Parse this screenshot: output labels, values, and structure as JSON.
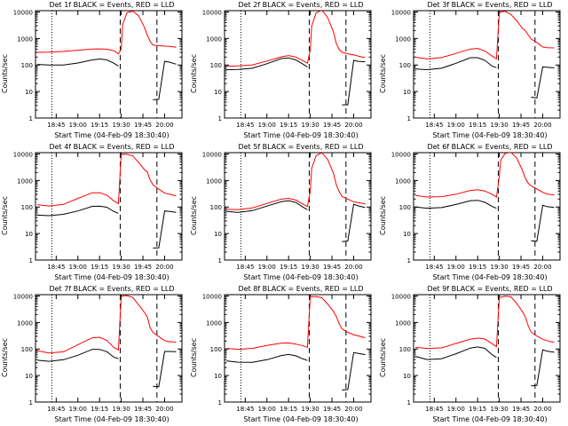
{
  "colors": {
    "events": "#000000",
    "lld": "#ff0000",
    "background": "#ffffff"
  },
  "common": {
    "ylabel": "Counts/sec",
    "xlabel": "Start Time (04-Feb-09 18:30:40)"
  },
  "chart_data": [
    {
      "type": "line",
      "title": "Det 1f BLACK = Events, RED = LLD",
      "xlabel": "Start Time (04-Feb-09 18:30:40)",
      "ylabel": "Counts/sec",
      "x_ticks": [
        "18:45",
        "19:00",
        "19:15",
        "19:30",
        "19:45",
        "20:00"
      ],
      "y_ticks": [
        "1",
        "10",
        "100",
        "1000",
        "10000"
      ],
      "y_scale": "log",
      "ylim": [
        1,
        10000
      ],
      "x": [
        "18:32",
        "18:40",
        "18:50",
        "19:00",
        "19:10",
        "19:15",
        "19:20",
        "19:25",
        "19:28",
        "19:30",
        "19:31",
        "19:34",
        "19:38",
        "19:42",
        "19:46",
        "19:48",
        "19:50",
        "19:52",
        "19:56",
        "20:00",
        "20:03",
        "20:08"
      ],
      "series": [
        {
          "color": "red",
          "values": [
            300,
            290,
            310,
            360,
            420,
            430,
            400,
            330,
            250,
            400,
            3500,
            10000,
            11000,
            7000,
            2500,
            1300,
            800,
            600,
            550,
            500,
            480,
            450
          ]
        },
        {
          "color": "black",
          "values": [
            100,
            95,
            100,
            125,
            165,
            170,
            150,
            110,
            90,
            null,
            null,
            null,
            null,
            null,
            null,
            null,
            null,
            5,
            5,
            130,
            125,
            110
          ]
        }
      ]
    },
    {
      "type": "line",
      "title": "Det 2f BLACK = Events, RED = LLD",
      "xlabel": "Start Time (04-Feb-09 18:30:40)",
      "ylabel": "Counts/sec",
      "x_ticks": [
        "18:45",
        "19:00",
        "19:15",
        "19:30",
        "19:45",
        "20:00"
      ],
      "y_ticks": [
        "1",
        "10",
        "100",
        "1000",
        "10000"
      ],
      "y_scale": "log",
      "ylim": [
        1,
        10000
      ],
      "x": [
        "18:32",
        "18:40",
        "18:50",
        "19:00",
        "19:10",
        "19:15",
        "19:20",
        "19:25",
        "19:28",
        "19:30",
        "19:31",
        "19:34",
        "19:38",
        "19:42",
        "19:46",
        "19:48",
        "19:50",
        "19:52",
        "19:56",
        "20:00",
        "20:03",
        "20:08"
      ],
      "series": [
        {
          "color": "red",
          "values": [
            85,
            90,
            105,
            150,
            210,
            220,
            190,
            140,
            120,
            400,
            3000,
            9000,
            11000,
            6000,
            1800,
            700,
            400,
            300,
            250,
            230,
            220,
            200
          ]
        },
        {
          "color": "black",
          "values": [
            65,
            70,
            80,
            115,
            170,
            175,
            150,
            110,
            90,
            null,
            null,
            null,
            null,
            null,
            null,
            null,
            null,
            3,
            3,
            150,
            145,
            140
          ]
        }
      ]
    },
    {
      "type": "line",
      "title": "Det 3f BLACK = Events, RED = LLD",
      "xlabel": "Start Time (04-Feb-09 18:30:40)",
      "ylabel": "Counts/sec",
      "x_ticks": [
        "18:45",
        "19:00",
        "19:15",
        "19:30",
        "19:45",
        "20:00"
      ],
      "y_ticks": [
        "1",
        "10",
        "100",
        "1000",
        "10000"
      ],
      "y_scale": "log",
      "ylim": [
        1,
        10000
      ],
      "x": [
        "18:32",
        "18:40",
        "18:50",
        "19:00",
        "19:10",
        "19:15",
        "19:20",
        "19:25",
        "19:28",
        "19:30",
        "19:31",
        "19:34",
        "19:38",
        "19:42",
        "19:46",
        "19:48",
        "19:50",
        "19:52",
        "19:56",
        "20:00",
        "20:03",
        "20:08"
      ],
      "series": [
        {
          "color": "red",
          "values": [
            200,
            180,
            200,
            270,
            380,
            400,
            340,
            230,
            180,
            9000,
            9500,
            10000,
            8000,
            5000,
            2500,
            2000,
            1300,
            900,
            700,
            500,
            480,
            450
          ]
        },
        {
          "color": "black",
          "values": [
            75,
            70,
            75,
            110,
            180,
            190,
            160,
            95,
            80,
            null,
            null,
            null,
            null,
            null,
            null,
            null,
            null,
            6,
            6,
            90,
            85,
            75
          ]
        }
      ]
    },
    {
      "type": "line",
      "title": "Det 4f BLACK = Events, RED = LLD",
      "xlabel": "Start Time (04-Feb-09 18:30:40)",
      "ylabel": "Counts/sec",
      "x_ticks": [
        "18:45",
        "19:00",
        "19:15",
        "19:30",
        "19:45",
        "20:00"
      ],
      "y_ticks": [
        "1",
        "10",
        "100",
        "1000",
        "10000"
      ],
      "y_scale": "log",
      "ylim": [
        1,
        10000
      ],
      "x": [
        "18:32",
        "18:40",
        "18:50",
        "19:00",
        "19:10",
        "19:15",
        "19:20",
        "19:25",
        "19:28",
        "19:30",
        "19:31",
        "19:34",
        "19:38",
        "19:42",
        "19:46",
        "19:48",
        "19:50",
        "19:52",
        "19:56",
        "20:00",
        "20:03",
        "20:08"
      ],
      "series": [
        {
          "color": "red",
          "values": [
            130,
            110,
            120,
            200,
            340,
            360,
            300,
            170,
            130,
            9000,
            9500,
            10000,
            9000,
            5000,
            2500,
            2000,
            1000,
            700,
            500,
            350,
            300,
            250
          ]
        },
        {
          "color": "black",
          "values": [
            50,
            45,
            50,
            70,
            110,
            115,
            100,
            65,
            55,
            null,
            null,
            null,
            null,
            null,
            null,
            null,
            null,
            3,
            3,
            70,
            65,
            60
          ]
        }
      ]
    },
    {
      "type": "line",
      "title": "Det 5f BLACK = Events, RED = LLD",
      "xlabel": "Start Time (04-Feb-09 18:30:40)",
      "ylabel": "Counts/sec",
      "x_ticks": [
        "18:45",
        "19:00",
        "19:15",
        "19:30",
        "19:45",
        "20:00"
      ],
      "y_ticks": [
        "1",
        "10",
        "100",
        "1000",
        "10000"
      ],
      "y_scale": "log",
      "ylim": [
        1,
        10000
      ],
      "x": [
        "18:32",
        "18:40",
        "18:50",
        "19:00",
        "19:10",
        "19:15",
        "19:20",
        "19:25",
        "19:28",
        "19:30",
        "19:31",
        "19:34",
        "19:38",
        "19:42",
        "19:46",
        "19:48",
        "19:50",
        "19:52",
        "19:56",
        "20:00",
        "20:03",
        "20:08"
      ],
      "series": [
        {
          "color": "red",
          "values": [
            80,
            75,
            90,
            140,
            210,
            220,
            180,
            120,
            100,
            400,
            3000,
            9000,
            11000,
            6000,
            1800,
            700,
            400,
            260,
            200,
            150,
            140,
            130
          ]
        },
        {
          "color": "black",
          "values": [
            65,
            60,
            75,
            115,
            165,
            170,
            140,
            95,
            80,
            null,
            null,
            null,
            null,
            null,
            null,
            null,
            null,
            5,
            5,
            120,
            110,
            100
          ]
        }
      ]
    },
    {
      "type": "line",
      "title": "Det 6f BLACK = Events, RED = LLD",
      "xlabel": "Start Time (04-Feb-09 18:30:40)",
      "ylabel": "Counts/sec",
      "x_ticks": [
        "18:45",
        "19:00",
        "19:15",
        "19:30",
        "19:45",
        "20:00"
      ],
      "y_ticks": [
        "1",
        "10",
        "100",
        "1000",
        "10000"
      ],
      "y_scale": "log",
      "ylim": [
        1,
        10000
      ],
      "x": [
        "18:32",
        "18:40",
        "18:50",
        "19:00",
        "19:10",
        "19:15",
        "19:20",
        "19:25",
        "19:28",
        "19:30",
        "19:31",
        "19:34",
        "19:38",
        "19:42",
        "19:46",
        "19:48",
        "19:50",
        "19:52",
        "19:56",
        "20:00",
        "20:03",
        "20:08"
      ],
      "series": [
        {
          "color": "red",
          "values": [
            260,
            240,
            260,
            320,
            420,
            430,
            380,
            300,
            250,
            1500,
            6000,
            10000,
            11000,
            7000,
            2500,
            1300,
            800,
            600,
            450,
            350,
            320,
            300
          ]
        },
        {
          "color": "black",
          "values": [
            100,
            95,
            100,
            125,
            165,
            170,
            150,
            110,
            95,
            null,
            null,
            null,
            null,
            null,
            null,
            null,
            null,
            5,
            5,
            120,
            110,
            100
          ]
        }
      ]
    },
    {
      "type": "line",
      "title": "Det 7f BLACK = Events, RED = LLD",
      "xlabel": "Start Time (04-Feb-09 18:30:40)",
      "ylabel": "Counts/sec",
      "x_ticks": [
        "18:45",
        "19:00",
        "19:15",
        "19:30",
        "19:45",
        "20:00"
      ],
      "y_ticks": [
        "1",
        "10",
        "100",
        "1000",
        "10000"
      ],
      "y_scale": "log",
      "ylim": [
        1,
        10000
      ],
      "x": [
        "18:32",
        "18:40",
        "18:50",
        "19:00",
        "19:10",
        "19:15",
        "19:20",
        "19:25",
        "19:28",
        "19:30",
        "19:31",
        "19:34",
        "19:38",
        "19:42",
        "19:46",
        "19:48",
        "19:50",
        "19:52",
        "19:56",
        "20:00",
        "20:03",
        "20:08"
      ],
      "series": [
        {
          "color": "red",
          "values": [
            90,
            75,
            80,
            140,
            250,
            270,
            220,
            120,
            95,
            9000,
            9500,
            10000,
            9000,
            5000,
            2500,
            1600,
            600,
            400,
            300,
            220,
            200,
            180
          ]
        },
        {
          "color": "black",
          "values": [
            40,
            35,
            38,
            55,
            95,
            100,
            85,
            50,
            42,
            null,
            null,
            null,
            null,
            null,
            null,
            null,
            null,
            4,
            4,
            85,
            80,
            75
          ]
        }
      ]
    },
    {
      "type": "line",
      "title": "Det 8f BLACK = Events, RED = LLD",
      "xlabel": "Start Time (04-Feb-09 18:30:40)",
      "ylabel": "Counts/sec",
      "x_ticks": [
        "18:45",
        "19:00",
        "19:15",
        "19:30",
        "19:45",
        "20:00"
      ],
      "y_ticks": [
        "1",
        "10",
        "100",
        "1000",
        "10000"
      ],
      "y_scale": "log",
      "ylim": [
        1,
        10000
      ],
      "x": [
        "18:32",
        "18:40",
        "18:50",
        "19:00",
        "19:10",
        "19:15",
        "19:20",
        "19:25",
        "19:28",
        "19:30",
        "19:31",
        "19:34",
        "19:38",
        "19:42",
        "19:46",
        "19:48",
        "19:50",
        "19:52",
        "19:56",
        "20:00",
        "20:03",
        "20:08"
      ],
      "series": [
        {
          "color": "red",
          "values": [
            110,
            95,
            100,
            130,
            170,
            180,
            160,
            130,
            110,
            9000,
            9500,
            10000,
            9000,
            5000,
            2500,
            1600,
            900,
            600,
            450,
            350,
            300,
            250
          ]
        },
        {
          "color": "black",
          "values": [
            35,
            30,
            30,
            40,
            60,
            65,
            55,
            40,
            35,
            null,
            null,
            null,
            null,
            null,
            null,
            null,
            null,
            3,
            3,
            70,
            65,
            60
          ]
        }
      ]
    },
    {
      "type": "line",
      "title": "Det 9f BLACK = Events, RED = LLD",
      "xlabel": "Start Time (04-Feb-09 18:30:40)",
      "ylabel": "Counts/sec",
      "x_ticks": [
        "18:45",
        "19:00",
        "19:15",
        "19:30",
        "19:45",
        "20:00"
      ],
      "y_ticks": [
        "1",
        "10",
        "100",
        "1000",
        "10000"
      ],
      "y_scale": "log",
      "ylim": [
        1,
        10000
      ],
      "x": [
        "18:32",
        "18:40",
        "18:50",
        "19:00",
        "19:10",
        "19:15",
        "19:20",
        "19:25",
        "19:28",
        "19:30",
        "19:31",
        "19:34",
        "19:38",
        "19:42",
        "19:46",
        "19:48",
        "19:50",
        "19:52",
        "19:56",
        "20:00",
        "20:03",
        "20:08"
      ],
      "series": [
        {
          "color": "red",
          "values": [
            110,
            100,
            110,
            170,
            250,
            260,
            230,
            150,
            120,
            9000,
            9500,
            10000,
            9000,
            5000,
            2500,
            1700,
            800,
            450,
            300,
            220,
            200,
            180
          ]
        },
        {
          "color": "black",
          "values": [
            50,
            40,
            45,
            70,
            110,
            115,
            100,
            60,
            50,
            null,
            null,
            null,
            null,
            null,
            null,
            null,
            null,
            4,
            4,
            90,
            85,
            80
          ]
        }
      ]
    }
  ]
}
